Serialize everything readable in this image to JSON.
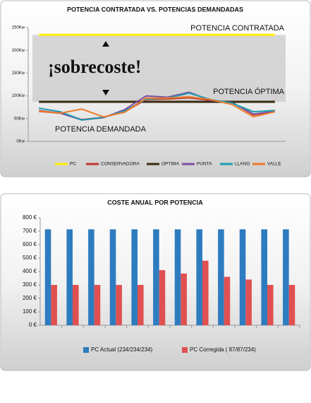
{
  "chart_data": [
    {
      "type": "line",
      "title": "POTENCIA CONTRATADA VS. POTENCIAS DEMANDADAS",
      "categories": [
        null,
        null,
        null,
        null,
        null,
        null,
        null,
        null,
        null,
        null,
        null,
        null
      ],
      "series": [
        {
          "name": "PC",
          "color": "#ffee00",
          "values": [
            234,
            234,
            234,
            234,
            234,
            234,
            234,
            234,
            234,
            234,
            234,
            234
          ]
        },
        {
          "name": "CONSERVADORA",
          "color": "#c0392b",
          "values": [
            66,
            62,
            48,
            53,
            65,
            92,
            93,
            96,
            90,
            86,
            58,
            67
          ]
        },
        {
          "name": "OPTIMA",
          "color": "#3a2a10",
          "values": [
            87,
            87,
            87,
            87,
            87,
            87,
            87,
            87,
            87,
            87,
            87,
            87
          ]
        },
        {
          "name": "PUNTA",
          "color": "#7b4fa0",
          "values": [
            68,
            62,
            47,
            52,
            70,
            100,
            97,
            108,
            90,
            85,
            60,
            66
          ]
        },
        {
          "name": "LLANO",
          "color": "#1f9bb0",
          "values": [
            73,
            65,
            47,
            53,
            67,
            93,
            95,
            106,
            92,
            84,
            65,
            68
          ]
        },
        {
          "name": "VALLE",
          "color": "#f07a2a",
          "values": [
            67,
            62,
            71,
            54,
            64,
            95,
            95,
            98,
            92,
            81,
            54,
            65
          ]
        }
      ],
      "ylim": [
        0,
        250
      ],
      "yticks": [
        {
          "value": 0,
          "label": "0Kw"
        },
        {
          "value": 50,
          "label": "50Kw"
        },
        {
          "value": 100,
          "label": "100Kw"
        },
        {
          "value": 150,
          "label": "150Kw"
        },
        {
          "value": 200,
          "label": "200Kw"
        },
        {
          "value": 250,
          "label": "250Kw"
        }
      ],
      "grid": false,
      "legend": "bottom",
      "annotations": [
        "POTENCIA CONTRATADA",
        "¡sobrecoste!",
        "POTENCIA ÓPTIMA",
        "POTENCIA DEMANDADA"
      ]
    },
    {
      "type": "bar",
      "title": "COSTE ANUAL POR POTENCIA",
      "categories": [
        null,
        null,
        null,
        null,
        null,
        null,
        null,
        null,
        null,
        null,
        null,
        null
      ],
      "series": [
        {
          "name": "PC Actual (234/234/234)",
          "color": "#2e7cc0",
          "values": [
            714,
            714,
            714,
            714,
            714,
            714,
            714,
            714,
            714,
            714,
            714,
            714
          ]
        },
        {
          "name": "PC Corregida ( 87/87/234)",
          "color": "#e05050",
          "values": [
            300,
            300,
            300,
            300,
            300,
            410,
            385,
            480,
            360,
            340,
            300,
            300
          ]
        }
      ],
      "ylim": [
        0,
        800
      ],
      "yticks": [
        {
          "value": 0,
          "label": "0 €"
        },
        {
          "value": 100,
          "label": "100 €"
        },
        {
          "value": 200,
          "label": "200 €"
        },
        {
          "value": 300,
          "label": "300 €"
        },
        {
          "value": 400,
          "label": "400 €"
        },
        {
          "value": 500,
          "label": "500 €"
        },
        {
          "value": 600,
          "label": "600 €"
        },
        {
          "value": 700,
          "label": "700 €"
        },
        {
          "value": 800,
          "label": "800 €"
        }
      ],
      "grid": false,
      "legend": "bottom"
    }
  ]
}
